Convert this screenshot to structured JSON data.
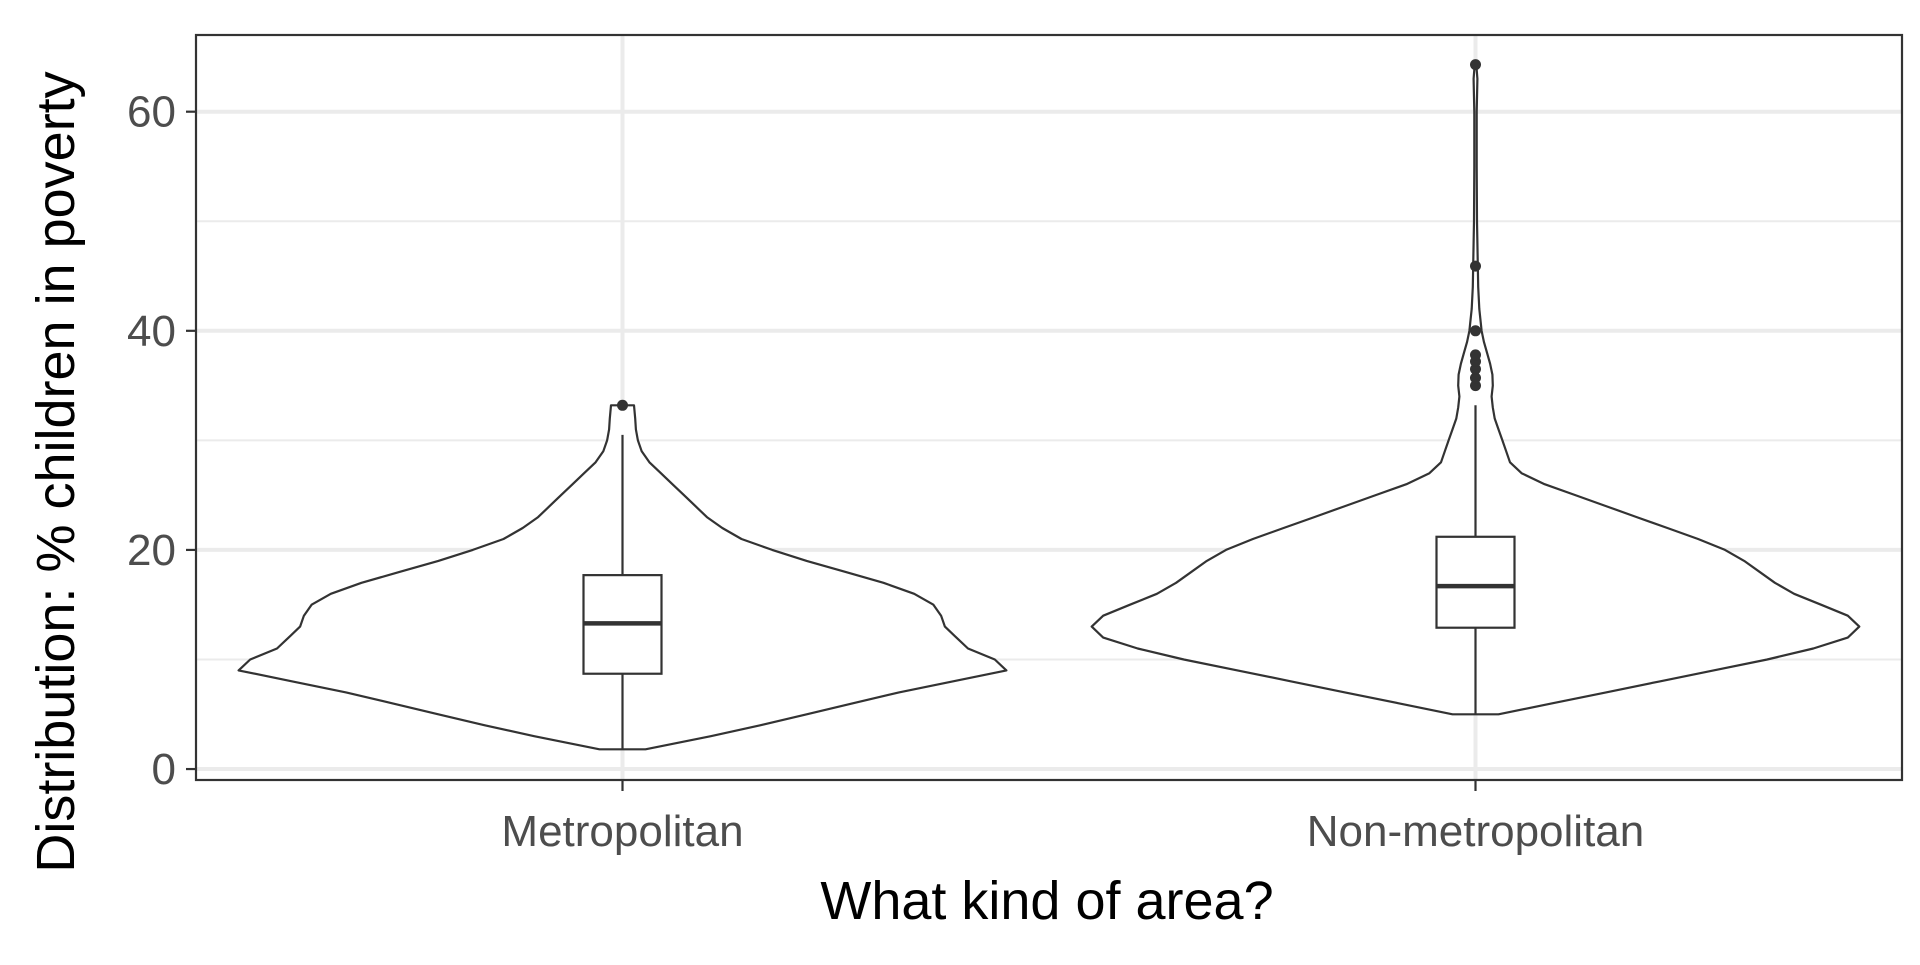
{
  "chart_data": {
    "type": "violin",
    "xlabel": "What kind of area?",
    "ylabel": "Distribution: % children in poverty",
    "categories": [
      "Metropolitan",
      "Non-metropolitan"
    ],
    "ylim": [
      -1,
      67
    ],
    "yticks": [
      0,
      20,
      40,
      60
    ],
    "grid": true,
    "legend": "none",
    "series": [
      {
        "category": "Metropolitan",
        "box": {
          "min": 1.8,
          "q1": 8.7,
          "median": 13.3,
          "q3": 17.7,
          "max": 30.5
        },
        "outliers": [
          33.2
        ],
        "violin": [
          [
            1.8,
            0.06
          ],
          [
            3,
            0.23
          ],
          [
            4,
            0.36
          ],
          [
            5,
            0.48
          ],
          [
            6,
            0.6
          ],
          [
            7,
            0.72
          ],
          [
            8,
            0.86
          ],
          [
            9,
            1.0
          ],
          [
            10,
            0.97
          ],
          [
            11,
            0.9
          ],
          [
            12,
            0.87
          ],
          [
            13,
            0.84
          ],
          [
            14,
            0.83
          ],
          [
            15,
            0.81
          ],
          [
            16,
            0.76
          ],
          [
            17,
            0.68
          ],
          [
            18,
            0.58
          ],
          [
            19,
            0.48
          ],
          [
            20,
            0.39
          ],
          [
            21,
            0.31
          ],
          [
            22,
            0.26
          ],
          [
            23,
            0.22
          ],
          [
            24,
            0.19
          ],
          [
            25,
            0.16
          ],
          [
            26,
            0.13
          ],
          [
            27,
            0.1
          ],
          [
            28,
            0.07
          ],
          [
            29,
            0.05
          ],
          [
            30,
            0.04
          ],
          [
            31,
            0.035
          ],
          [
            32,
            0.033
          ],
          [
            33.2,
            0.03
          ]
        ]
      },
      {
        "category": "Non-metropolitan",
        "box": {
          "min": 5,
          "q1": 12.9,
          "median": 16.7,
          "q3": 21.2,
          "max": 33.2
        },
        "outliers": [
          35,
          35.7,
          36.5,
          37.2,
          37.8,
          40,
          45.9,
          64.3
        ],
        "violin": [
          [
            5,
            0.06
          ],
          [
            6,
            0.2
          ],
          [
            7,
            0.34
          ],
          [
            8,
            0.48
          ],
          [
            9,
            0.62
          ],
          [
            10,
            0.76
          ],
          [
            11,
            0.88
          ],
          [
            12,
            0.97
          ],
          [
            13,
            1.0
          ],
          [
            14,
            0.97
          ],
          [
            15,
            0.9
          ],
          [
            16,
            0.83
          ],
          [
            17,
            0.78
          ],
          [
            18,
            0.74
          ],
          [
            19,
            0.7
          ],
          [
            20,
            0.65
          ],
          [
            21,
            0.58
          ],
          [
            22,
            0.5
          ],
          [
            23,
            0.42
          ],
          [
            24,
            0.34
          ],
          [
            25,
            0.26
          ],
          [
            26,
            0.18
          ],
          [
            27,
            0.12
          ],
          [
            28,
            0.09
          ],
          [
            29,
            0.08
          ],
          [
            30,
            0.07
          ],
          [
            31,
            0.06
          ],
          [
            32,
            0.05
          ],
          [
            33,
            0.045
          ],
          [
            34,
            0.042
          ],
          [
            35,
            0.045
          ],
          [
            36,
            0.044
          ],
          [
            37,
            0.038
          ],
          [
            38,
            0.03
          ],
          [
            39,
            0.022
          ],
          [
            40,
            0.016
          ],
          [
            42,
            0.01
          ],
          [
            44,
            0.007
          ],
          [
            46,
            0.006
          ],
          [
            48,
            0.005
          ],
          [
            50,
            0.004
          ],
          [
            55,
            0.003
          ],
          [
            60,
            0.003
          ],
          [
            63,
            0.005
          ],
          [
            64.3,
            0.002
          ]
        ]
      }
    ]
  }
}
